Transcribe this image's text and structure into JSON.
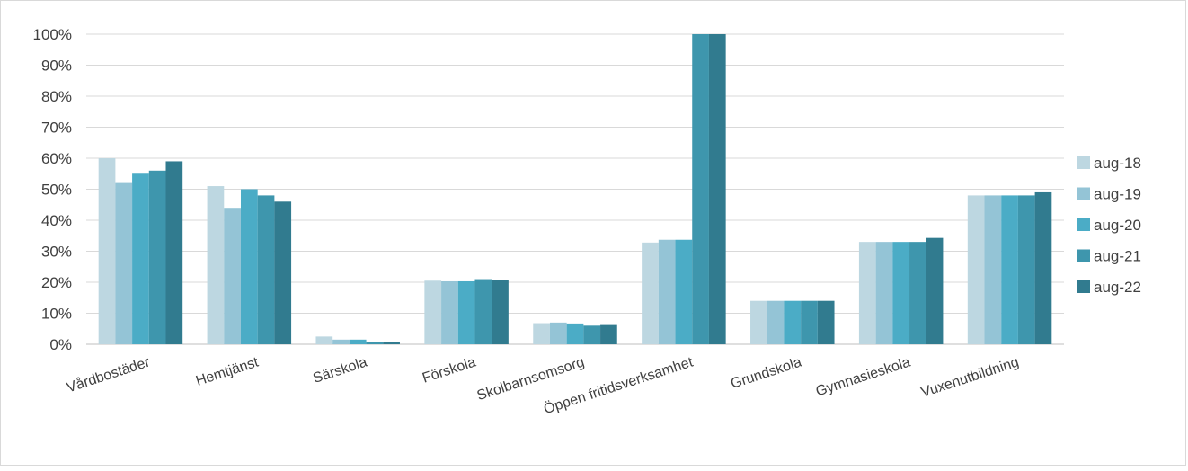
{
  "chart_data": {
    "type": "bar",
    "categories": [
      "Vårdbostäder",
      "Hemtjänst",
      "Särskola",
      "Förskola",
      "Skolbarnsomsorg",
      "Öppen fritidsverksamhet",
      "Grundskola",
      "Gymnasieskola",
      "Vuxenutbildning"
    ],
    "series": [
      {
        "name": "aug-18",
        "color": "#bdd7e1",
        "values": [
          60,
          51,
          2.5,
          20.5,
          6.8,
          32.8,
          14,
          33,
          48
        ]
      },
      {
        "name": "aug-19",
        "color": "#94c4d6",
        "values": [
          52,
          44,
          1.5,
          20.3,
          7,
          33.7,
          14,
          33,
          48
        ]
      },
      {
        "name": "aug-20",
        "color": "#4bacc6",
        "values": [
          55,
          50,
          1.5,
          20.3,
          6.7,
          33.7,
          14,
          33,
          48
        ]
      },
      {
        "name": "aug-21",
        "color": "#3e96ad",
        "values": [
          56,
          48,
          0.8,
          21,
          6,
          100,
          14,
          33,
          48
        ]
      },
      {
        "name": "aug-22",
        "color": "#317b8f",
        "values": [
          59,
          46,
          0.8,
          20.8,
          6.2,
          100,
          14,
          34.3,
          49
        ]
      }
    ],
    "yticks": [
      "0%",
      "10%",
      "20%",
      "30%",
      "40%",
      "50%",
      "60%",
      "70%",
      "80%",
      "90%",
      "100%"
    ],
    "ylim": [
      0,
      100
    ],
    "grid": true,
    "legend": "right",
    "title": "",
    "xlabel": "",
    "ylabel": ""
  }
}
